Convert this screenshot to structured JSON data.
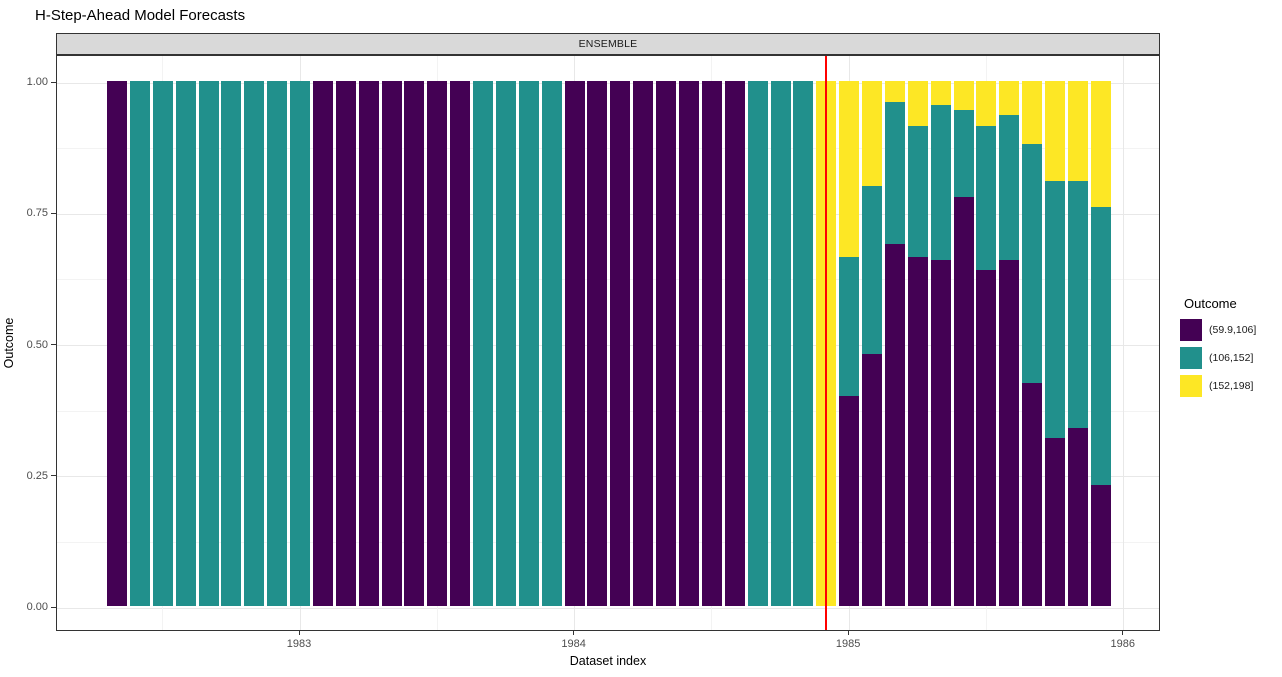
{
  "title": "H-Step-Ahead Model Forecasts",
  "facet": {
    "label": "ENSEMBLE"
  },
  "axes": {
    "x": {
      "label": "Dataset index",
      "ticks": [
        {
          "label": "1983",
          "bar": 9
        },
        {
          "label": "1984",
          "bar": 21
        },
        {
          "label": "1985",
          "bar": 33
        },
        {
          "label": "1986",
          "bar": 45
        }
      ],
      "minor_bars": [
        3,
        15,
        27,
        39
      ]
    },
    "y": {
      "label": "Outcome",
      "ticks": [
        {
          "label": "1.00",
          "v": 1.0
        },
        {
          "label": "0.75",
          "v": 0.75
        },
        {
          "label": "0.50",
          "v": 0.5
        },
        {
          "label": "0.25",
          "v": 0.25
        },
        {
          "label": "0.00",
          "v": 0.0
        }
      ],
      "minor_vs": [
        0.875,
        0.625,
        0.375,
        0.125
      ],
      "range": [
        0,
        1
      ]
    }
  },
  "legend": {
    "title": "Outcome",
    "items": [
      {
        "label": "(59.9,106]",
        "color": "#440154"
      },
      {
        "label": "(106,152]",
        "color": "#21908c"
      },
      {
        "label": "(152,198]",
        "color": "#fde725"
      }
    ]
  },
  "theme": {
    "strip_bg": "#d9d9d9",
    "panel_border": "#333333",
    "grid_major": "#e8e8e8",
    "grid_minor": "#f3f3f3",
    "axis_text": "#4d4d4d",
    "ref_line_color": "#ff0000"
  },
  "ref_line": {
    "bar": 32,
    "color": "#ff0000",
    "x_value": "1984-12"
  },
  "chart_data": {
    "type": "bar",
    "subtype": "stacked-normalized",
    "title": "H-Step-Ahead Model Forecasts",
    "facet_label": "ENSEMBLE",
    "xlabel": "Dataset index",
    "ylabel": "Outcome",
    "ylim": [
      0,
      1
    ],
    "x_tick_labels": [
      "1983",
      "1984",
      "1985",
      "1986"
    ],
    "legend_position": "right",
    "grid": true,
    "segment_order": [
      "(59.9,106]",
      "(106,152]",
      "(152,198]"
    ],
    "segment_colors": [
      "#440154",
      "#21908c",
      "#fde725"
    ],
    "bars": [
      {
        "x": "1982-05",
        "segments": [
          1,
          0,
          0
        ]
      },
      {
        "x": "1982-06",
        "segments": [
          0,
          1,
          0
        ]
      },
      {
        "x": "1982-07",
        "segments": [
          0,
          1,
          0
        ]
      },
      {
        "x": "1982-08",
        "segments": [
          0,
          1,
          0
        ]
      },
      {
        "x": "1982-09",
        "segments": [
          0,
          1,
          0
        ]
      },
      {
        "x": "1982-10",
        "segments": [
          0,
          1,
          0
        ]
      },
      {
        "x": "1982-11",
        "segments": [
          0,
          1,
          0
        ]
      },
      {
        "x": "1982-12",
        "segments": [
          0,
          1,
          0
        ]
      },
      {
        "x": "1983-01",
        "segments": [
          0,
          1,
          0
        ]
      },
      {
        "x": "1983-02",
        "segments": [
          1,
          0,
          0
        ]
      },
      {
        "x": "1983-03",
        "segments": [
          1,
          0,
          0
        ]
      },
      {
        "x": "1983-04",
        "segments": [
          1,
          0,
          0
        ]
      },
      {
        "x": "1983-05",
        "segments": [
          1,
          0,
          0
        ]
      },
      {
        "x": "1983-06",
        "segments": [
          1,
          0,
          0
        ]
      },
      {
        "x": "1983-07",
        "segments": [
          1,
          0,
          0
        ]
      },
      {
        "x": "1983-08",
        "segments": [
          1,
          0,
          0
        ]
      },
      {
        "x": "1983-09",
        "segments": [
          0,
          1,
          0
        ]
      },
      {
        "x": "1983-10",
        "segments": [
          0,
          1,
          0
        ]
      },
      {
        "x": "1983-11",
        "segments": [
          0,
          1,
          0
        ]
      },
      {
        "x": "1983-12",
        "segments": [
          0,
          1,
          0
        ]
      },
      {
        "x": "1984-01",
        "segments": [
          1,
          0,
          0
        ]
      },
      {
        "x": "1984-02",
        "segments": [
          1,
          0,
          0
        ]
      },
      {
        "x": "1984-03",
        "segments": [
          1,
          0,
          0
        ]
      },
      {
        "x": "1984-04",
        "segments": [
          1,
          0,
          0
        ]
      },
      {
        "x": "1984-05",
        "segments": [
          1,
          0,
          0
        ]
      },
      {
        "x": "1984-06",
        "segments": [
          1,
          0,
          0
        ]
      },
      {
        "x": "1984-07",
        "segments": [
          1,
          0,
          0
        ]
      },
      {
        "x": "1984-08",
        "segments": [
          1,
          0,
          0
        ]
      },
      {
        "x": "1984-09",
        "segments": [
          0,
          1,
          0
        ]
      },
      {
        "x": "1984-10",
        "segments": [
          0,
          1,
          0
        ]
      },
      {
        "x": "1984-11",
        "segments": [
          0,
          1,
          0
        ]
      },
      {
        "x": "1984-12",
        "segments": [
          0,
          0,
          1
        ]
      },
      {
        "x": "1985-01",
        "segments": [
          0.4,
          0.265,
          0.335
        ]
      },
      {
        "x": "1985-02",
        "segments": [
          0.48,
          0.32,
          0.2
        ]
      },
      {
        "x": "1985-03",
        "segments": [
          0.69,
          0.27,
          0.04
        ]
      },
      {
        "x": "1985-04",
        "segments": [
          0.665,
          0.25,
          0.085
        ]
      },
      {
        "x": "1985-05",
        "segments": [
          0.66,
          0.295,
          0.045
        ]
      },
      {
        "x": "1985-06",
        "segments": [
          0.78,
          0.165,
          0.055
        ]
      },
      {
        "x": "1985-07",
        "segments": [
          0.64,
          0.275,
          0.085
        ]
      },
      {
        "x": "1985-08",
        "segments": [
          0.66,
          0.275,
          0.065
        ]
      },
      {
        "x": "1985-09",
        "segments": [
          0.425,
          0.455,
          0.12
        ]
      },
      {
        "x": "1985-10",
        "segments": [
          0.32,
          0.49,
          0.19
        ]
      },
      {
        "x": "1985-11",
        "segments": [
          0.34,
          0.47,
          0.19
        ]
      },
      {
        "x": "1985-12",
        "segments": [
          0.23,
          0.53,
          0.24
        ]
      }
    ]
  }
}
